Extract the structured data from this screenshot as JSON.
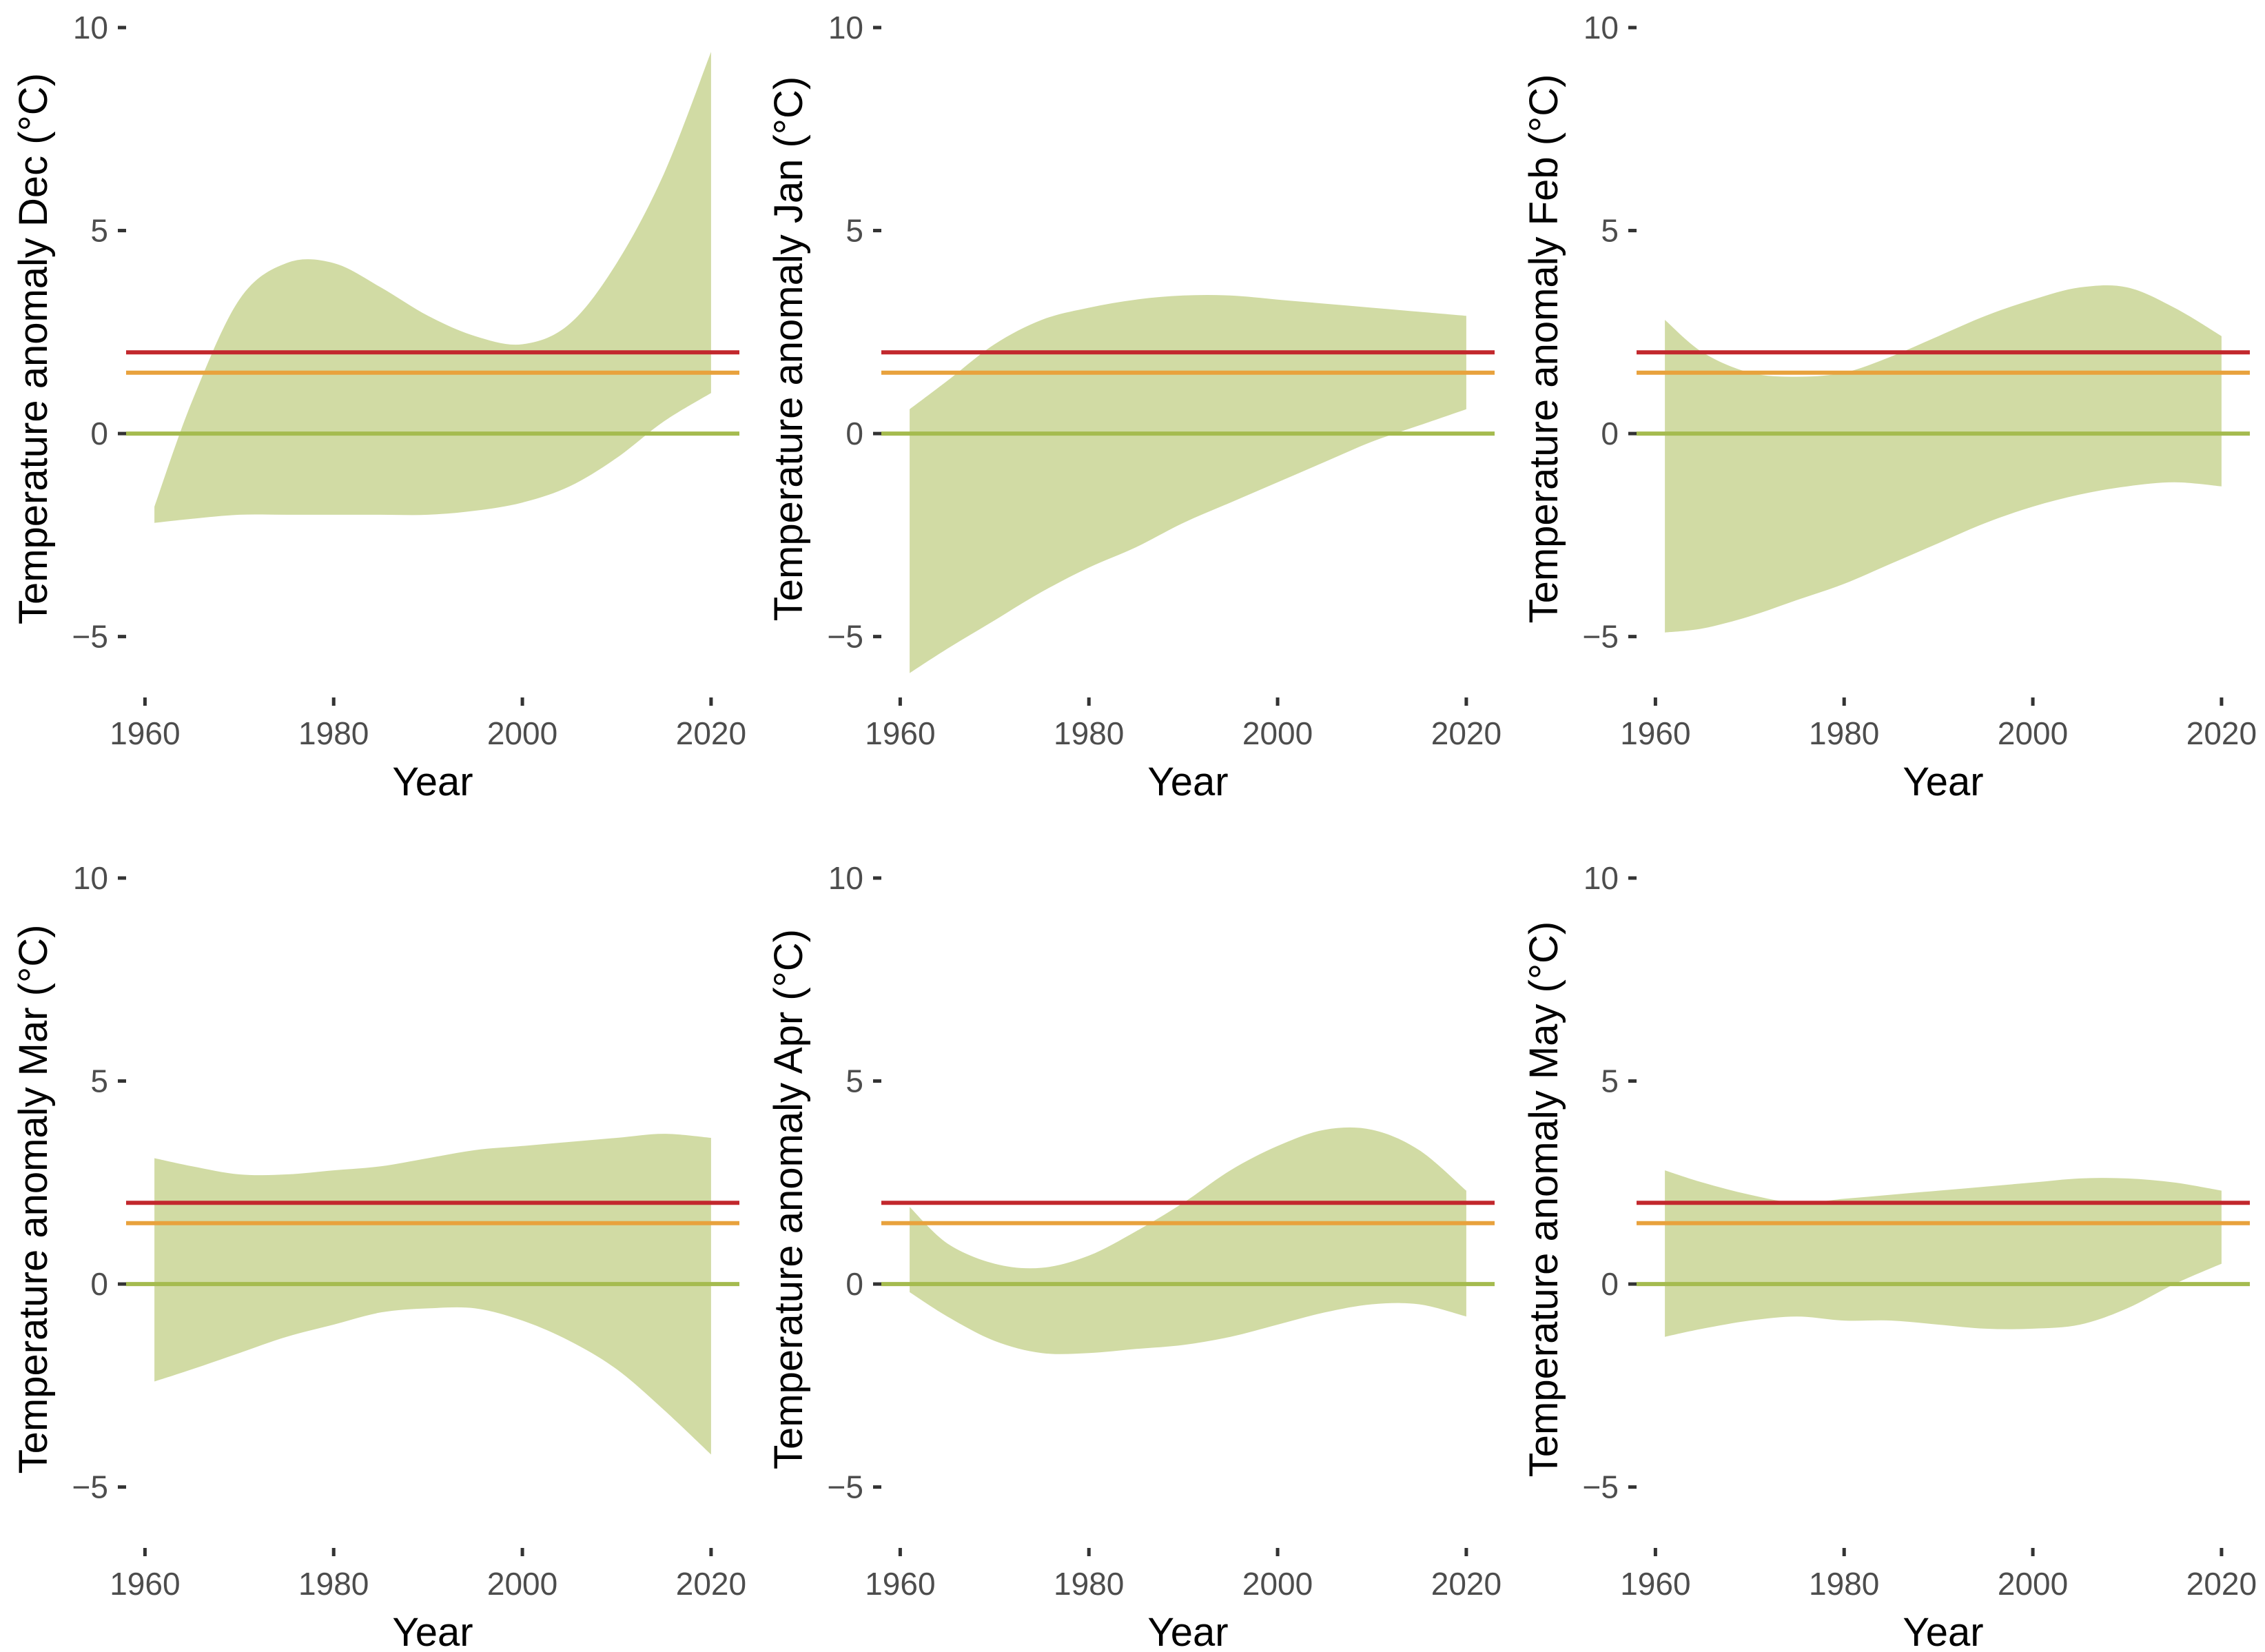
{
  "colors": {
    "band": "#d1dba4",
    "line_2": "#c2282d",
    "line_15": "#e8a23d",
    "line_0": "#a5bb4f",
    "tick": "#333333",
    "tick_text": "#4d4d4d"
  },
  "chart_data": [
    {
      "type": "area",
      "xlabel": "Year",
      "ylabel": "Temperature anomaly Dec (°C)",
      "xlim": [
        1958,
        2023
      ],
      "ylim": [
        -6.5,
        10
      ],
      "xticks": [
        1960,
        1980,
        2000,
        2020
      ],
      "yticks": [
        -5,
        0,
        5,
        10
      ],
      "hlines": [
        2.0,
        1.5,
        0.0
      ],
      "band": {
        "x": [
          1961,
          1965,
          1970,
          1975,
          1980,
          1985,
          1990,
          1995,
          2000,
          2005,
          2010,
          2015,
          2020
        ],
        "upper": [
          -1.8,
          0.8,
          3.3,
          4.2,
          4.2,
          3.6,
          2.9,
          2.4,
          2.2,
          2.7,
          4.2,
          6.4,
          9.4
        ],
        "lower": [
          -2.2,
          -2.1,
          -2.0,
          -2.0,
          -2.0,
          -2.0,
          -2.0,
          -1.9,
          -1.7,
          -1.3,
          -0.6,
          0.3,
          1.0
        ]
      }
    },
    {
      "type": "area",
      "xlabel": "Year",
      "ylabel": "Temperature anomaly Jan (°C)",
      "xlim": [
        1958,
        2023
      ],
      "ylim": [
        -6.5,
        10
      ],
      "xticks": [
        1960,
        1980,
        2000,
        2020
      ],
      "yticks": [
        -5,
        0,
        5,
        10
      ],
      "hlines": [
        2.0,
        1.5,
        0.0
      ],
      "band": {
        "x": [
          1961,
          1965,
          1970,
          1975,
          1980,
          1985,
          1990,
          1995,
          2000,
          2005,
          2010,
          2015,
          2020
        ],
        "upper": [
          0.6,
          1.3,
          2.2,
          2.8,
          3.1,
          3.3,
          3.4,
          3.4,
          3.3,
          3.2,
          3.1,
          3.0,
          2.9
        ],
        "lower": [
          -5.9,
          -5.3,
          -4.6,
          -3.9,
          -3.3,
          -2.8,
          -2.2,
          -1.7,
          -1.2,
          -0.7,
          -0.2,
          0.2,
          0.6
        ]
      }
    },
    {
      "type": "area",
      "xlabel": "Year",
      "ylabel": "Temperature anomaly Feb (°C)",
      "xlim": [
        1958,
        2023
      ],
      "ylim": [
        -6.5,
        10
      ],
      "xticks": [
        1960,
        1980,
        2000,
        2020
      ],
      "yticks": [
        -5,
        0,
        5,
        10
      ],
      "hlines": [
        2.0,
        1.5,
        0.0
      ],
      "band": {
        "x": [
          1961,
          1965,
          1970,
          1975,
          1980,
          1985,
          1990,
          1995,
          2000,
          2005,
          2010,
          2015,
          2020
        ],
        "upper": [
          2.8,
          2.0,
          1.5,
          1.4,
          1.5,
          1.9,
          2.4,
          2.9,
          3.3,
          3.6,
          3.6,
          3.1,
          2.4
        ],
        "lower": [
          -4.9,
          -4.8,
          -4.5,
          -4.1,
          -3.7,
          -3.2,
          -2.7,
          -2.2,
          -1.8,
          -1.5,
          -1.3,
          -1.2,
          -1.3
        ]
      }
    },
    {
      "type": "area",
      "xlabel": "Year",
      "ylabel": "Temperature anomaly Mar (°C)",
      "xlim": [
        1958,
        2023
      ],
      "ylim": [
        -6.5,
        10
      ],
      "xticks": [
        1960,
        1980,
        2000,
        2020
      ],
      "yticks": [
        -5,
        0,
        5,
        10
      ],
      "hlines": [
        2.0,
        1.5,
        0.0
      ],
      "band": {
        "x": [
          1961,
          1965,
          1970,
          1975,
          1980,
          1985,
          1990,
          1995,
          2000,
          2005,
          2010,
          2015,
          2020
        ],
        "upper": [
          3.1,
          2.9,
          2.7,
          2.7,
          2.8,
          2.9,
          3.1,
          3.3,
          3.4,
          3.5,
          3.6,
          3.7,
          3.6
        ],
        "lower": [
          -2.4,
          -2.1,
          -1.7,
          -1.3,
          -1.0,
          -0.7,
          -0.6,
          -0.6,
          -0.9,
          -1.4,
          -2.1,
          -3.1,
          -4.2
        ]
      }
    },
    {
      "type": "area",
      "xlabel": "Year",
      "ylabel": "Temperature anomaly Apr (°C)",
      "xlim": [
        1958,
        2023
      ],
      "ylim": [
        -6.5,
        10
      ],
      "xticks": [
        1960,
        1980,
        2000,
        2020
      ],
      "yticks": [
        -5,
        0,
        5,
        10
      ],
      "hlines": [
        2.0,
        1.5,
        0.0
      ],
      "band": {
        "x": [
          1961,
          1965,
          1970,
          1975,
          1980,
          1985,
          1990,
          1995,
          2000,
          2005,
          2010,
          2015,
          2020
        ],
        "upper": [
          1.9,
          1.0,
          0.5,
          0.4,
          0.7,
          1.3,
          2.0,
          2.8,
          3.4,
          3.8,
          3.8,
          3.3,
          2.3
        ],
        "lower": [
          -0.2,
          -0.8,
          -1.4,
          -1.7,
          -1.7,
          -1.6,
          -1.5,
          -1.3,
          -1.0,
          -0.7,
          -0.5,
          -0.5,
          -0.8
        ]
      }
    },
    {
      "type": "area",
      "xlabel": "Year",
      "ylabel": "Temperature anomaly May (°C)",
      "xlim": [
        1958,
        2023
      ],
      "ylim": [
        -6.5,
        10
      ],
      "xticks": [
        1960,
        1980,
        2000,
        2020
      ],
      "yticks": [
        -5,
        0,
        5,
        10
      ],
      "hlines": [
        2.0,
        1.5,
        0.0
      ],
      "band": {
        "x": [
          1961,
          1965,
          1970,
          1975,
          1980,
          1985,
          1990,
          1995,
          2000,
          2005,
          2010,
          2015,
          2020
        ],
        "upper": [
          2.8,
          2.5,
          2.2,
          2.0,
          2.1,
          2.2,
          2.3,
          2.4,
          2.5,
          2.6,
          2.6,
          2.5,
          2.3
        ],
        "lower": [
          -1.3,
          -1.1,
          -0.9,
          -0.8,
          -0.9,
          -0.9,
          -1.0,
          -1.1,
          -1.1,
          -1.0,
          -0.6,
          0.0,
          0.5
        ]
      }
    }
  ]
}
